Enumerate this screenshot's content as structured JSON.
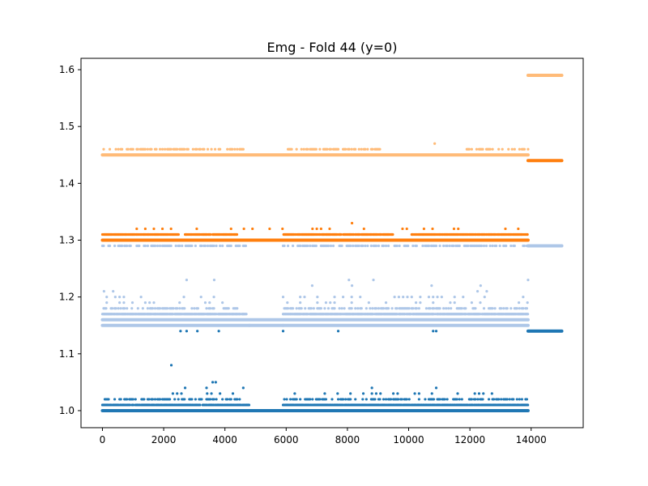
{
  "chart_data": {
    "type": "scatter",
    "title": "Emg - Fold 44 (y=0)",
    "xlabel": "",
    "ylabel": "",
    "xlim": [
      -700,
      15700
    ],
    "ylim": [
      0.97,
      1.62
    ],
    "x_ticks": [
      0,
      2000,
      4000,
      6000,
      8000,
      10000,
      12000,
      14000
    ],
    "x_tick_labels": [
      "0",
      "2000",
      "4000",
      "6000",
      "8000",
      "10000",
      "12000",
      "14000"
    ],
    "y_ticks": [
      1.0,
      1.1,
      1.2,
      1.3,
      1.4,
      1.5,
      1.6
    ],
    "y_tick_labels": [
      "1.0",
      "1.1",
      "1.2",
      "1.3",
      "1.4",
      "1.5",
      "1.6"
    ],
    "grid": false,
    "legend": "none",
    "colors": {
      "dark_blue": "#1f77b4",
      "light_blue": "#aec7e8",
      "orange": "#ff7f0e",
      "light_orange": "#ffbb78"
    },
    "series": [
      {
        "color": "#ffbb78",
        "bands": [
          {
            "y": 1.45,
            "segments": [
              [
                0,
                13900
              ]
            ],
            "density": "continuous"
          },
          {
            "y": 1.46,
            "segments": [
              [
                0,
                4700
              ],
              [
                5900,
                9200
              ],
              [
                11900,
                13900
              ]
            ],
            "density": "sparse"
          },
          {
            "y": 1.59,
            "segments": [
              [
                13900,
                15000
              ]
            ],
            "density": "continuous"
          },
          {
            "y": 1.44,
            "segments": [
              [
                13900,
                15000
              ]
            ],
            "density": "none"
          }
        ],
        "points": [
          [
            10850,
            1.47
          ]
        ]
      },
      {
        "color": "#ff7f0e",
        "bands": [
          {
            "y": 1.3,
            "segments": [
              [
                0,
                13900
              ]
            ],
            "density": "continuous"
          },
          {
            "y": 1.31,
            "segments": [
              [
                0,
                2500
              ],
              [
                2700,
                4400
              ],
              [
                5900,
                9500
              ],
              [
                10100,
                13900
              ]
            ],
            "density": "dense"
          },
          {
            "y": 1.32,
            "segments": [
              [
                0,
                13900
              ]
            ],
            "density": "rare"
          },
          {
            "y": 1.44,
            "segments": [
              [
                13900,
                15000
              ]
            ],
            "density": "continuous"
          }
        ],
        "points": [
          [
            8150,
            1.33
          ]
        ]
      },
      {
        "color": "#aec7e8",
        "bands": [
          {
            "y": 1.29,
            "segments": [
              [
                0,
                4700
              ],
              [
                5900,
                13900
              ]
            ],
            "density": "sparse"
          },
          {
            "y": 1.29,
            "segments": [
              [
                13900,
                15000
              ]
            ],
            "density": "continuous"
          },
          {
            "y": 1.15,
            "segments": [
              [
                0,
                4800
              ],
              [
                4800,
                5900
              ],
              [
                5900,
                13900
              ]
            ],
            "density": "continuous"
          },
          {
            "y": 1.16,
            "segments": [
              [
                0,
                13900
              ]
            ],
            "density": "continuous"
          },
          {
            "y": 1.17,
            "segments": [
              [
                0,
                4700
              ],
              [
                5900,
                13900
              ]
            ],
            "density": "dense"
          },
          {
            "y": 1.18,
            "segments": [
              [
                0,
                4500
              ],
              [
                5900,
                13900
              ]
            ],
            "density": "sparse"
          },
          {
            "y": 1.19,
            "segments": [
              [
                0,
                4500
              ],
              [
                5900,
                13900
              ]
            ],
            "density": "rare"
          },
          {
            "y": 1.2,
            "segments": [
              [
                0,
                4500
              ],
              [
                5900,
                13900
              ]
            ],
            "density": "rare"
          }
        ],
        "points": [
          [
            50,
            1.21
          ],
          [
            350,
            1.21
          ],
          [
            2750,
            1.23
          ],
          [
            3650,
            1.23
          ],
          [
            6850,
            1.22
          ],
          [
            8050,
            1.23
          ],
          [
            8150,
            1.22
          ],
          [
            8850,
            1.23
          ],
          [
            10750,
            1.22
          ],
          [
            12350,
            1.22
          ],
          [
            12250,
            1.21
          ],
          [
            13900,
            1.23
          ],
          [
            12550,
            1.21
          ]
        ]
      },
      {
        "color": "#1f77b4",
        "bands": [
          {
            "y": 1.0,
            "segments": [
              [
                0,
                13900
              ]
            ],
            "density": "continuous"
          },
          {
            "y": 1.01,
            "segments": [
              [
                0,
                4800
              ],
              [
                5900,
                13900
              ]
            ],
            "density": "dense"
          },
          {
            "y": 1.02,
            "segments": [
              [
                0,
                4500
              ],
              [
                5900,
                13900
              ]
            ],
            "density": "sparse"
          },
          {
            "y": 1.03,
            "segments": [
              [
                2300,
                4500
              ],
              [
                6000,
                13000
              ]
            ],
            "density": "rare"
          },
          {
            "y": 1.14,
            "segments": [
              [
                13900,
                15000
              ]
            ],
            "density": "continuous"
          }
        ],
        "points": [
          [
            2250,
            1.08
          ],
          [
            3600,
            1.05
          ],
          [
            3700,
            1.05
          ],
          [
            2700,
            1.04
          ],
          [
            3400,
            1.04
          ],
          [
            4600,
            1.04
          ],
          [
            8800,
            1.04
          ],
          [
            10900,
            1.04
          ],
          [
            2550,
            1.14
          ],
          [
            2750,
            1.14
          ],
          [
            3100,
            1.14
          ],
          [
            3800,
            1.14
          ],
          [
            5900,
            1.14
          ],
          [
            7700,
            1.14
          ],
          [
            10800,
            1.14
          ],
          [
            10900,
            1.14
          ]
        ]
      }
    ]
  }
}
